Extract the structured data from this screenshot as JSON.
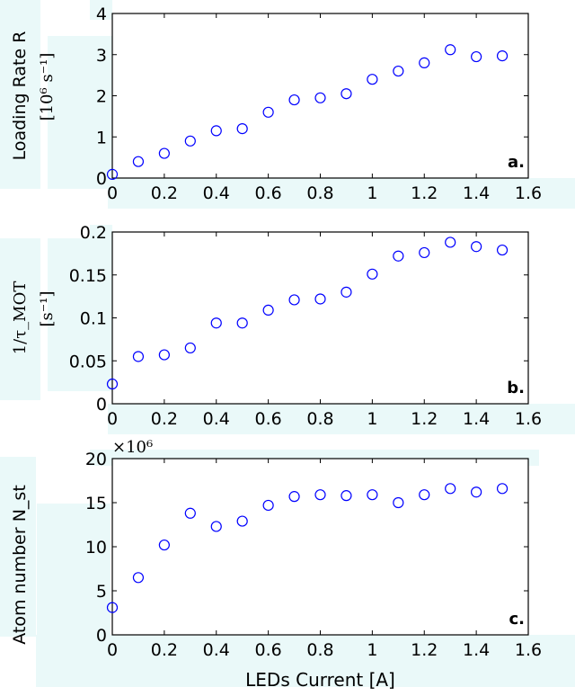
{
  "chart_data": [
    {
      "type": "scatter",
      "panel_label": "a.",
      "ylabel_main": "Loading Rate R",
      "ylabel_unit": "[10⁶ s⁻¹]",
      "multiplier": "",
      "xlabel": "",
      "xlim": [
        0,
        1.6
      ],
      "ylim": [
        0,
        4
      ],
      "xticks": [
        "0",
        "0.2",
        "0.4",
        "0.6",
        "0.8",
        "1",
        "1.2",
        "1.4",
        "1.6"
      ],
      "yticks": [
        "0",
        "1",
        "2",
        "3",
        "4"
      ],
      "x": [
        0,
        0.1,
        0.2,
        0.3,
        0.4,
        0.5,
        0.6,
        0.7,
        0.8,
        0.9,
        1.0,
        1.1,
        1.2,
        1.3,
        1.4,
        1.5
      ],
      "y": [
        0.09,
        0.4,
        0.6,
        0.9,
        1.15,
        1.2,
        1.6,
        1.9,
        1.95,
        2.05,
        2.4,
        2.6,
        2.8,
        3.12,
        2.95,
        2.97
      ],
      "marker_color": "#0000ff",
      "grid": false
    },
    {
      "type": "scatter",
      "panel_label": "b.",
      "ylabel_main": "1/τ_MOT",
      "ylabel_unit": "[s⁻¹]",
      "multiplier": "",
      "xlabel": "",
      "xlim": [
        0,
        1.6
      ],
      "ylim": [
        0,
        0.2
      ],
      "xticks": [
        "0",
        "0.2",
        "0.4",
        "0.6",
        "0.8",
        "1",
        "1.2",
        "1.4",
        "1.6"
      ],
      "yticks": [
        "0",
        "0.05",
        "0.1",
        "0.15",
        "0.2"
      ],
      "x": [
        0,
        0.1,
        0.2,
        0.3,
        0.4,
        0.5,
        0.6,
        0.7,
        0.8,
        0.9,
        1.0,
        1.1,
        1.2,
        1.3,
        1.4,
        1.5
      ],
      "y": [
        0.023,
        0.055,
        0.057,
        0.065,
        0.094,
        0.094,
        0.109,
        0.121,
        0.122,
        0.13,
        0.151,
        0.172,
        0.176,
        0.188,
        0.183,
        0.179
      ],
      "marker_color": "#0000ff",
      "grid": false
    },
    {
      "type": "scatter",
      "panel_label": "c.",
      "ylabel_main": "Atom number N_st",
      "ylabel_unit": "",
      "multiplier": "×10⁶",
      "xlabel": "LEDs Current [A]",
      "xlim": [
        0,
        1.6
      ],
      "ylim": [
        0,
        20
      ],
      "xticks": [
        "0",
        "0.2",
        "0.4",
        "0.6",
        "0.8",
        "1",
        "1.2",
        "1.4",
        "1.6"
      ],
      "yticks": [
        "0",
        "5",
        "10",
        "15",
        "20"
      ],
      "x": [
        0,
        0.1,
        0.2,
        0.3,
        0.4,
        0.5,
        0.6,
        0.7,
        0.8,
        0.9,
        1.0,
        1.1,
        1.2,
        1.3,
        1.4,
        1.5
      ],
      "y": [
        3.1,
        6.5,
        10.2,
        13.8,
        12.3,
        12.9,
        14.7,
        15.7,
        15.9,
        15.8,
        15.9,
        15.0,
        15.9,
        16.6,
        16.2,
        16.6
      ],
      "marker_color": "#0000ff",
      "grid": false
    }
  ],
  "colors": {
    "label_background": "#eaf9f9",
    "axes_background": "#ffffff",
    "marker": "#0000ff"
  }
}
